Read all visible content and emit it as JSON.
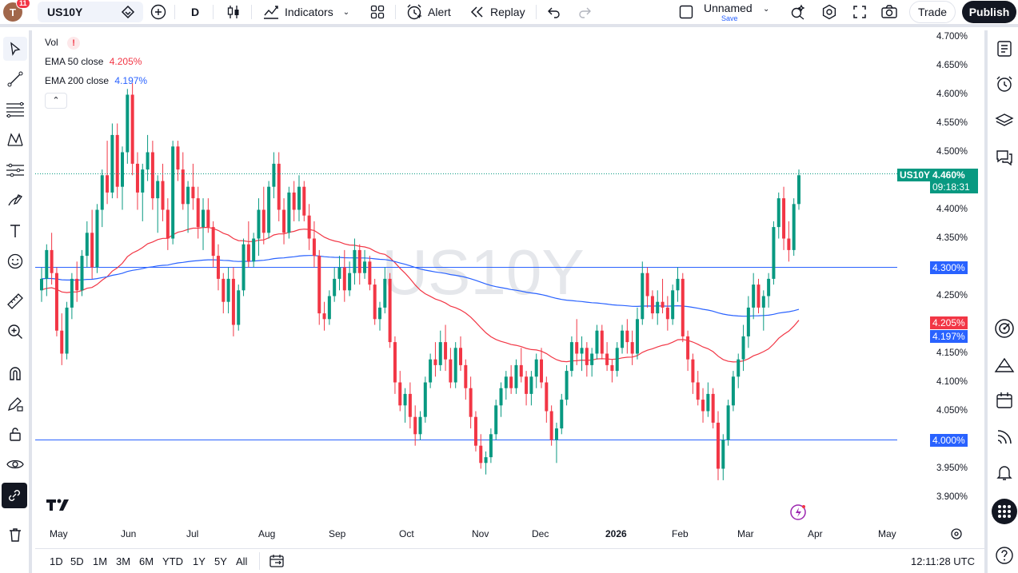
{
  "topbar": {
    "notification_count": "11",
    "avatar_letter": "T",
    "symbol": "US10Y",
    "interval": "D",
    "indicators_label": "Indicators",
    "alert_label": "Alert",
    "replay_label": "Replay",
    "layout_name": "Unnamed",
    "layout_save": "Save",
    "trade_label": "Trade",
    "publish_label": "Publish"
  },
  "legend": {
    "vol_label": "Vol",
    "vol_warning": "!",
    "ema50_label": "EMA 50 close",
    "ema50_value": "4.205%",
    "ema200_label": "EMA 200 close",
    "ema200_value": "4.197%"
  },
  "watermark": "US10Y",
  "price_scale": {
    "ticks": [
      "4.700%",
      "4.650%",
      "4.600%",
      "4.550%",
      "4.500%",
      "4.450%",
      "4.400%",
      "4.350%",
      "4.300%",
      "4.250%",
      "4.200%",
      "4.150%",
      "4.100%",
      "4.050%",
      "4.000%",
      "3.950%",
      "3.900%"
    ],
    "last_symbol": "US10Y",
    "last_price": "4.460%",
    "countdown": "09:18:31",
    "hline_upper": "4.300%",
    "hline_lower": "4.000%",
    "ema50_tag": "4.205%",
    "ema200_tag": "4.197%"
  },
  "time_axis": [
    "May",
    "Jun",
    "Jul",
    "Aug",
    "Sep",
    "Oct",
    "Nov",
    "Dec",
    "2026",
    "Feb",
    "Mar",
    "Apr",
    "May"
  ],
  "ranges": [
    "1D",
    "5D",
    "1M",
    "3M",
    "6M",
    "YTD",
    "1Y",
    "5Y",
    "All"
  ],
  "clock": "12:11:28 UTC",
  "colors": {
    "up": "#089981",
    "down": "#f23645",
    "ema50": "#f23645",
    "ema200": "#2962ff",
    "hline": "#2962ff",
    "ema200_tag": "#2962ff"
  },
  "chart_data": {
    "type": "candlestick",
    "symbol": "US10Y",
    "interval": "1D",
    "ylim": [
      3.88,
      4.72
    ],
    "x_range": [
      "May",
      "May"
    ],
    "horizontal_lines": [
      4.3,
      4.0
    ],
    "last_price": 4.46,
    "ohlc_estimated": [
      [
        4.26,
        4.3,
        4.24,
        4.28
      ],
      [
        4.28,
        4.34,
        4.25,
        4.33
      ],
      [
        4.33,
        4.36,
        4.27,
        4.29
      ],
      [
        4.29,
        4.3,
        4.18,
        4.19
      ],
      [
        4.19,
        4.22,
        4.13,
        4.15
      ],
      [
        4.15,
        4.24,
        4.14,
        4.23
      ],
      [
        4.23,
        4.29,
        4.21,
        4.28
      ],
      [
        4.28,
        4.31,
        4.24,
        4.26
      ],
      [
        4.26,
        4.33,
        4.25,
        4.32
      ],
      [
        4.32,
        4.38,
        4.3,
        4.36
      ],
      [
        4.36,
        4.4,
        4.28,
        4.3
      ],
      [
        4.3,
        4.41,
        4.29,
        4.4
      ],
      [
        4.4,
        4.47,
        4.37,
        4.46
      ],
      [
        4.46,
        4.52,
        4.41,
        4.43
      ],
      [
        4.43,
        4.55,
        4.42,
        4.53
      ],
      [
        4.53,
        4.55,
        4.42,
        4.44
      ],
      [
        4.44,
        4.51,
        4.4,
        4.5
      ],
      [
        4.5,
        4.61,
        4.48,
        4.6
      ],
      [
        4.6,
        4.62,
        4.46,
        4.48
      ],
      [
        4.48,
        4.5,
        4.4,
        4.43
      ],
      [
        4.43,
        4.48,
        4.38,
        4.47
      ],
      [
        4.47,
        4.53,
        4.45,
        4.5
      ],
      [
        4.5,
        4.52,
        4.4,
        4.42
      ],
      [
        4.42,
        4.46,
        4.36,
        4.45
      ],
      [
        4.45,
        4.48,
        4.38,
        4.4
      ],
      [
        4.4,
        4.42,
        4.33,
        4.35
      ],
      [
        4.35,
        4.52,
        4.34,
        4.51
      ],
      [
        4.51,
        4.52,
        4.45,
        4.47
      ],
      [
        4.47,
        4.5,
        4.4,
        4.41
      ],
      [
        4.41,
        4.45,
        4.36,
        4.44
      ],
      [
        4.44,
        4.48,
        4.4,
        4.42
      ],
      [
        4.42,
        4.44,
        4.35,
        4.37
      ],
      [
        4.37,
        4.42,
        4.33,
        4.4
      ],
      [
        4.4,
        4.42,
        4.36,
        4.37
      ],
      [
        4.37,
        4.38,
        4.3,
        4.32
      ],
      [
        4.32,
        4.34,
        4.26,
        4.28
      ],
      [
        4.28,
        4.29,
        4.22,
        4.24
      ],
      [
        4.24,
        4.3,
        4.22,
        4.28
      ],
      [
        4.28,
        4.3,
        4.18,
        4.2
      ],
      [
        4.2,
        4.27,
        4.19,
        4.26
      ],
      [
        4.26,
        4.35,
        4.25,
        4.34
      ],
      [
        4.34,
        4.38,
        4.3,
        4.31
      ],
      [
        4.31,
        4.36,
        4.3,
        4.35
      ],
      [
        4.35,
        4.42,
        4.32,
        4.4
      ],
      [
        4.4,
        4.44,
        4.34,
        4.36
      ],
      [
        4.36,
        4.45,
        4.35,
        4.44
      ],
      [
        4.44,
        4.5,
        4.42,
        4.48
      ],
      [
        4.48,
        4.5,
        4.38,
        4.4
      ],
      [
        4.4,
        4.42,
        4.34,
        4.36
      ],
      [
        4.36,
        4.44,
        4.35,
        4.43
      ],
      [
        4.43,
        4.45,
        4.38,
        4.4
      ],
      [
        4.4,
        4.46,
        4.38,
        4.44
      ],
      [
        4.44,
        4.45,
        4.38,
        4.39
      ],
      [
        4.39,
        4.41,
        4.33,
        4.35
      ],
      [
        4.35,
        4.38,
        4.3,
        4.32
      ],
      [
        4.32,
        4.33,
        4.2,
        4.22
      ],
      [
        4.22,
        4.24,
        4.19,
        4.21
      ],
      [
        4.21,
        4.26,
        4.2,
        4.25
      ],
      [
        4.25,
        4.3,
        4.24,
        4.28
      ],
      [
        4.28,
        4.32,
        4.26,
        4.3
      ],
      [
        4.3,
        4.33,
        4.24,
        4.26
      ],
      [
        4.26,
        4.31,
        4.25,
        4.29
      ],
      [
        4.29,
        4.35,
        4.27,
        4.33
      ],
      [
        4.33,
        4.34,
        4.27,
        4.29
      ],
      [
        4.29,
        4.33,
        4.28,
        4.31
      ],
      [
        4.31,
        4.32,
        4.26,
        4.27
      ],
      [
        4.27,
        4.28,
        4.2,
        4.21
      ],
      [
        4.21,
        4.24,
        4.19,
        4.23
      ],
      [
        4.23,
        4.3,
        4.22,
        4.28
      ],
      [
        4.28,
        4.29,
        4.16,
        4.17
      ],
      [
        4.17,
        4.18,
        4.08,
        4.1
      ],
      [
        4.1,
        4.12,
        4.05,
        4.06
      ],
      [
        4.06,
        4.09,
        4.03,
        4.08
      ],
      [
        4.08,
        4.1,
        4.02,
        4.04
      ],
      [
        4.04,
        4.06,
        3.99,
        4.01
      ],
      [
        4.01,
        4.05,
        4.0,
        4.04
      ],
      [
        4.04,
        4.11,
        4.03,
        4.1
      ],
      [
        4.1,
        4.15,
        4.09,
        4.14
      ],
      [
        4.14,
        4.17,
        4.11,
        4.13
      ],
      [
        4.13,
        4.19,
        4.12,
        4.17
      ],
      [
        4.17,
        4.2,
        4.12,
        4.14
      ],
      [
        4.14,
        4.16,
        4.09,
        4.1
      ],
      [
        4.1,
        4.17,
        4.09,
        4.16
      ],
      [
        4.16,
        4.18,
        4.12,
        4.13
      ],
      [
        4.13,
        4.14,
        4.07,
        4.09
      ],
      [
        4.09,
        4.11,
        4.02,
        4.04
      ],
      [
        4.04,
        4.05,
        3.98,
        3.99
      ],
      [
        3.99,
        4.01,
        3.95,
        3.96
      ],
      [
        3.96,
        3.98,
        3.94,
        3.97
      ],
      [
        3.97,
        4.02,
        3.96,
        4.01
      ],
      [
        4.01,
        4.07,
        4.0,
        4.06
      ],
      [
        4.06,
        4.1,
        4.04,
        4.09
      ],
      [
        4.09,
        4.12,
        4.07,
        4.11
      ],
      [
        4.11,
        4.13,
        4.08,
        4.09
      ],
      [
        4.09,
        4.14,
        4.08,
        4.13
      ],
      [
        4.13,
        4.16,
        4.1,
        4.11
      ],
      [
        4.11,
        4.12,
        4.06,
        4.08
      ],
      [
        4.08,
        4.12,
        4.06,
        4.11
      ],
      [
        4.11,
        4.15,
        4.09,
        4.14
      ],
      [
        4.14,
        4.16,
        4.09,
        4.1
      ],
      [
        4.1,
        4.11,
        4.03,
        4.05
      ],
      [
        4.05,
        4.06,
        3.99,
        4.0
      ],
      [
        4.0,
        4.03,
        3.96,
        4.02
      ],
      [
        4.02,
        4.08,
        4.01,
        4.07
      ],
      [
        4.07,
        4.13,
        4.06,
        4.12
      ],
      [
        4.12,
        4.18,
        4.11,
        4.17
      ],
      [
        4.17,
        4.21,
        4.13,
        4.15
      ],
      [
        4.15,
        4.18,
        4.12,
        4.16
      ],
      [
        4.16,
        4.17,
        4.11,
        4.13
      ],
      [
        4.13,
        4.16,
        4.11,
        4.15
      ],
      [
        4.15,
        4.2,
        4.14,
        4.19
      ],
      [
        4.19,
        4.2,
        4.14,
        4.15
      ],
      [
        4.15,
        4.17,
        4.12,
        4.13
      ],
      [
        4.13,
        4.14,
        4.1,
        4.12
      ],
      [
        4.12,
        4.17,
        4.11,
        4.16
      ],
      [
        4.16,
        4.2,
        4.15,
        4.19
      ],
      [
        4.19,
        4.21,
        4.15,
        4.17
      ],
      [
        4.17,
        4.19,
        4.13,
        4.15
      ],
      [
        4.15,
        4.23,
        4.14,
        4.21
      ],
      [
        4.21,
        4.31,
        4.2,
        4.29
      ],
      [
        4.29,
        4.3,
        4.23,
        4.25
      ],
      [
        4.25,
        4.26,
        4.21,
        4.22
      ],
      [
        4.22,
        4.26,
        4.2,
        4.24
      ],
      [
        4.24,
        4.28,
        4.22,
        4.23
      ],
      [
        4.23,
        4.25,
        4.19,
        4.21
      ],
      [
        4.21,
        4.27,
        4.2,
        4.26
      ],
      [
        4.26,
        4.3,
        4.24,
        4.28
      ],
      [
        4.28,
        4.29,
        4.17,
        4.18
      ],
      [
        4.18,
        4.19,
        4.12,
        4.14
      ],
      [
        4.14,
        4.15,
        4.08,
        4.1
      ],
      [
        4.1,
        4.12,
        4.06,
        4.07
      ],
      [
        4.07,
        4.09,
        4.03,
        4.05
      ],
      [
        4.05,
        4.1,
        4.04,
        4.08
      ],
      [
        4.08,
        4.09,
        4.02,
        4.03
      ],
      [
        4.03,
        4.05,
        3.93,
        3.95
      ],
      [
        3.95,
        4.01,
        3.93,
        4.0
      ],
      [
        4.0,
        4.07,
        3.99,
        4.06
      ],
      [
        4.06,
        4.12,
        4.05,
        4.11
      ],
      [
        4.11,
        4.15,
        4.09,
        4.14
      ],
      [
        4.14,
        4.2,
        4.12,
        4.18
      ],
      [
        4.18,
        4.25,
        4.16,
        4.23
      ],
      [
        4.23,
        4.29,
        4.21,
        4.27
      ],
      [
        4.27,
        4.28,
        4.22,
        4.23
      ],
      [
        4.23,
        4.26,
        4.19,
        4.25
      ],
      [
        4.25,
        4.29,
        4.23,
        4.28
      ],
      [
        4.28,
        4.38,
        4.27,
        4.37
      ],
      [
        4.37,
        4.43,
        4.35,
        4.42
      ],
      [
        4.42,
        4.44,
        4.33,
        4.35
      ],
      [
        4.35,
        4.38,
        4.31,
        4.33
      ],
      [
        4.33,
        4.42,
        4.32,
        4.41
      ],
      [
        4.41,
        4.47,
        4.4,
        4.46
      ]
    ],
    "series": [
      {
        "name": "EMA 50 close",
        "last_value": 4.205
      },
      {
        "name": "EMA 200 close",
        "last_value": 4.197
      }
    ]
  }
}
